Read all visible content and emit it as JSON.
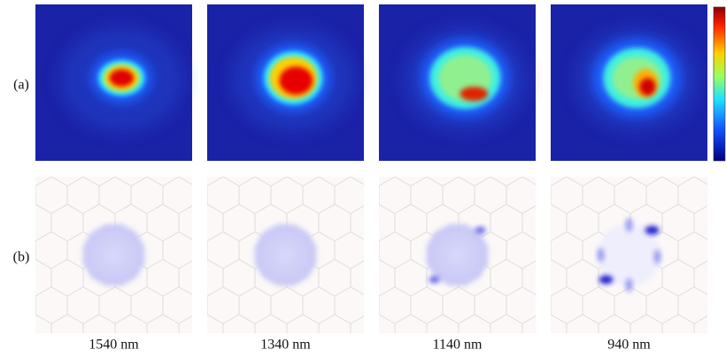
{
  "figure": {
    "row_labels": [
      "(a)",
      "(b)"
    ],
    "column_labels": [
      "1540 nm",
      "1340 nm",
      "1140 nm",
      "940 nm"
    ]
  }
}
